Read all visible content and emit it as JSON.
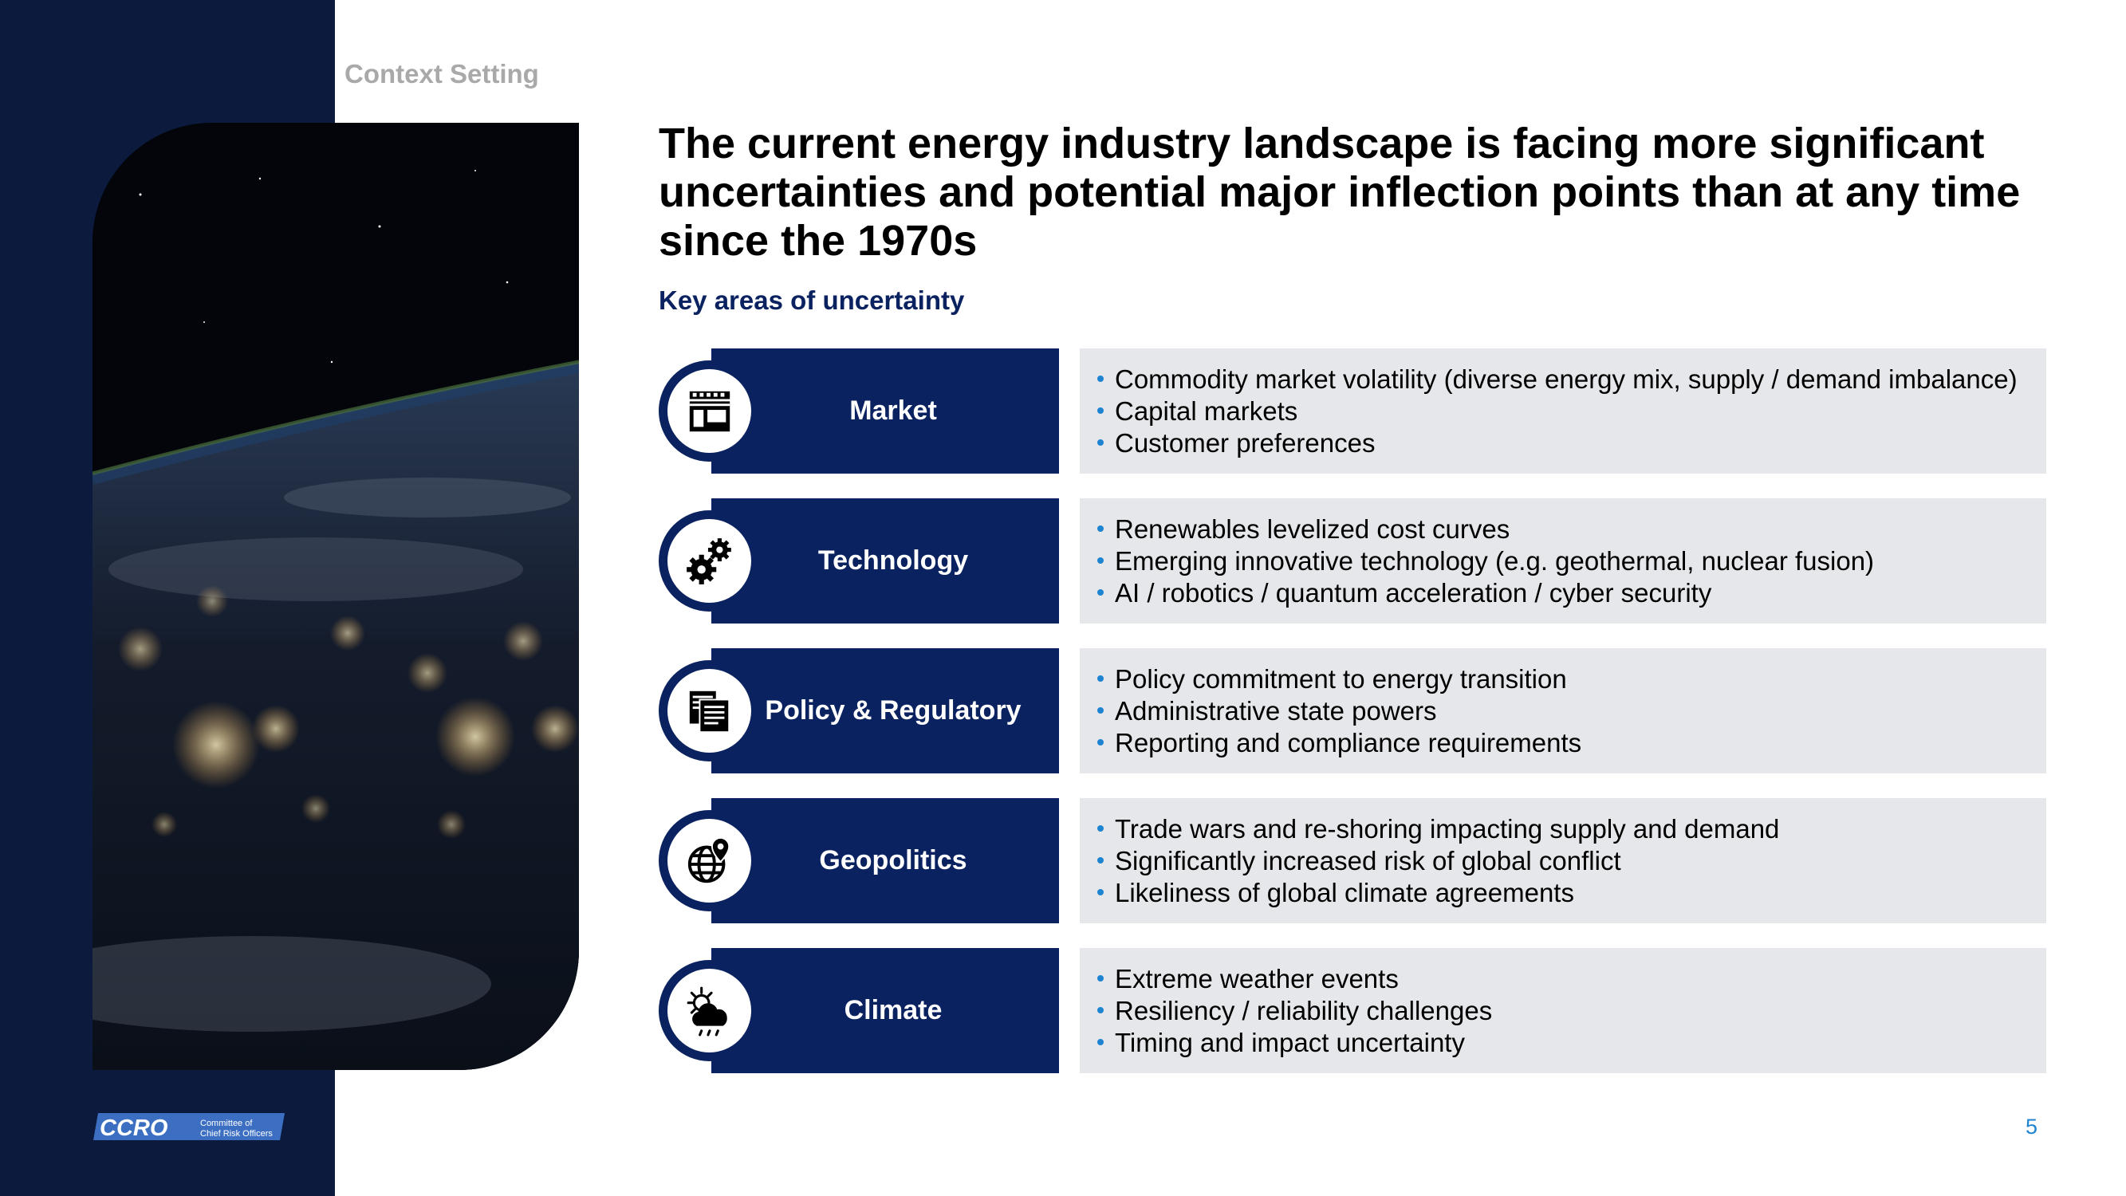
{
  "header": {
    "section_label": "Context Setting"
  },
  "title": "The current energy industry landscape is facing more significant uncertainties and potential major inflection points than at any time since the 1970s",
  "subtitle": "Key areas of uncertainty",
  "rows": [
    {
      "label": "Market",
      "icon": "storefront-icon",
      "bullets": [
        "Commodity market volatility (diverse energy mix, supply / demand imbalance)",
        "Capital markets",
        "Customer preferences"
      ]
    },
    {
      "label": "Technology",
      "icon": "gears-icon",
      "bullets": [
        "Renewables levelized cost curves",
        "Emerging innovative technology (e.g. geothermal, nuclear fusion)",
        "AI / robotics / quantum acceleration / cyber security"
      ]
    },
    {
      "label": "Policy & Regulatory",
      "icon": "documents-icon",
      "bullets": [
        "Policy commitment to energy transition",
        "Administrative state powers",
        "Reporting and compliance requirements"
      ]
    },
    {
      "label": "Geopolitics",
      "icon": "globe-pin-icon",
      "bullets": [
        "Trade wars and re-shoring impacting supply and demand",
        "Significantly increased risk of global conflict",
        "Likeliness of global climate agreements"
      ]
    },
    {
      "label": "Climate",
      "icon": "sun-cloud-icon",
      "bullets": [
        "Extreme weather events",
        "Resiliency / reliability challenges",
        "Timing and impact uncertainty"
      ]
    }
  ],
  "logo": {
    "name": "CCRO",
    "tagline_1": "Committee of",
    "tagline_2": "Chief Risk Officers"
  },
  "page_number": "5",
  "colors": {
    "navy": "#0b2260",
    "sidebar": "#0b1a3d",
    "panel": "#e6e7ea",
    "accent": "#1e84d2",
    "muted": "#a9a9a9"
  }
}
